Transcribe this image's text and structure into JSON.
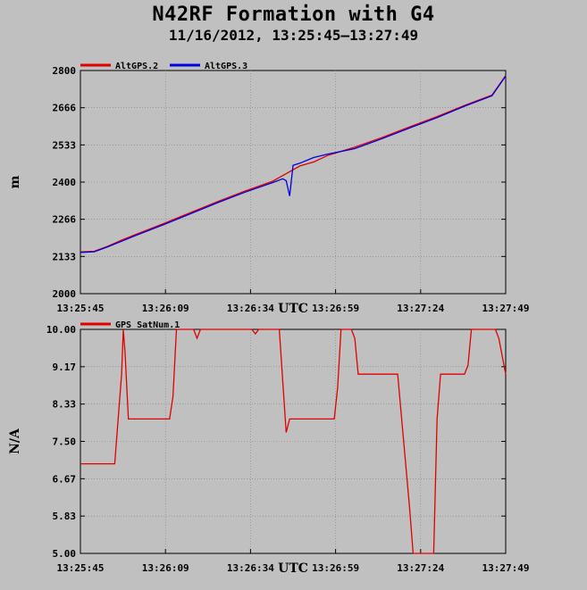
{
  "title": "N42RF Formation with G4",
  "subtitle": "11/16/2012, 13:25:45–13:27:49",
  "colors": {
    "background": "#c0c0c0",
    "plot_bg": "#c0c0c0",
    "red": "#e00000",
    "blue": "#0000e0",
    "grid": "#808080"
  },
  "chart_data": [
    {
      "type": "line",
      "ylabel": "m",
      "xlabel": "UTC",
      "ylim": [
        2000,
        2800
      ],
      "yticks": [
        "2000",
        "2133",
        "2266",
        "2400",
        "2533",
        "2666",
        "2800"
      ],
      "xticks": [
        "13:25:45",
        "13:26:09",
        "13:26:34",
        "13:26:59",
        "13:27:24",
        "13:27:49"
      ],
      "xlim_seconds": [
        0,
        124
      ],
      "grid": true,
      "legend_placement": "top-left",
      "series": [
        {
          "name": "AltGPS.2",
          "color": "#e00000",
          "points": [
            [
              0,
              2150
            ],
            [
              4,
              2152
            ],
            [
              8,
              2170
            ],
            [
              12,
              2192
            ],
            [
              16,
              2212
            ],
            [
              24,
              2250
            ],
            [
              32,
              2290
            ],
            [
              40,
              2330
            ],
            [
              48,
              2368
            ],
            [
              56,
              2403
            ],
            [
              60,
              2430
            ],
            [
              64,
              2458
            ],
            [
              68,
              2472
            ],
            [
              72,
              2495
            ],
            [
              80,
              2525
            ],
            [
              88,
              2560
            ],
            [
              96,
              2598
            ],
            [
              104,
              2635
            ],
            [
              112,
              2675
            ],
            [
              120,
              2712
            ],
            [
              124,
              2782
            ]
          ]
        },
        {
          "name": "AltGPS.3",
          "color": "#0000e0",
          "points": [
            [
              0,
              2148
            ],
            [
              4,
              2150
            ],
            [
              8,
              2168
            ],
            [
              12,
              2188
            ],
            [
              16,
              2208
            ],
            [
              24,
              2246
            ],
            [
              32,
              2286
            ],
            [
              40,
              2326
            ],
            [
              48,
              2364
            ],
            [
              56,
              2398
            ],
            [
              59,
              2412
            ],
            [
              60,
              2405
            ],
            [
              61,
              2350
            ],
            [
              62,
              2460
            ],
            [
              64,
              2468
            ],
            [
              68,
              2488
            ],
            [
              72,
              2500
            ],
            [
              80,
              2520
            ],
            [
              88,
              2556
            ],
            [
              96,
              2594
            ],
            [
              104,
              2631
            ],
            [
              112,
              2672
            ],
            [
              120,
              2709
            ],
            [
              124,
              2780
            ]
          ]
        }
      ]
    },
    {
      "type": "line",
      "ylabel": "N/A",
      "xlabel": "UTC",
      "ylim": [
        5.0,
        10.0
      ],
      "yticks": [
        "5.00",
        "5.83",
        "6.67",
        "7.50",
        "8.33",
        "9.17",
        "10.00"
      ],
      "xticks": [
        "13:25:45",
        "13:26:09",
        "13:26:34",
        "13:26:59",
        "13:27:24",
        "13:27:49"
      ],
      "xlim_seconds": [
        0,
        124
      ],
      "grid": true,
      "legend_placement": "top-left",
      "series": [
        {
          "name": "GPS_SatNum.1",
          "color": "#e00000",
          "points": [
            [
              0,
              7
            ],
            [
              10,
              7
            ],
            [
              12,
              9
            ],
            [
              12.5,
              10
            ],
            [
              13,
              9.5
            ],
            [
              14,
              8
            ],
            [
              26,
              8
            ],
            [
              27,
              8.5
            ],
            [
              28,
              10
            ],
            [
              33,
              10
            ],
            [
              34,
              9.8
            ],
            [
              35,
              10
            ],
            [
              50,
              10
            ],
            [
              51,
              9.9
            ],
            [
              52,
              10
            ],
            [
              58,
              10
            ],
            [
              60,
              7.7
            ],
            [
              61,
              8
            ],
            [
              74,
              8
            ],
            [
              75,
              8.7
            ],
            [
              76,
              10
            ],
            [
              79,
              10
            ],
            [
              80,
              9.8
            ],
            [
              81,
              9
            ],
            [
              92,
              9
            ],
            [
              92.5,
              9
            ],
            [
              96,
              6
            ],
            [
              97,
              5
            ],
            [
              103,
              5
            ],
            [
              104,
              8
            ],
            [
              105,
              9
            ],
            [
              112,
              9
            ],
            [
              113,
              9.2
            ],
            [
              114,
              10
            ],
            [
              121,
              10
            ],
            [
              122,
              9.8
            ],
            [
              124,
              9
            ]
          ]
        }
      ]
    }
  ]
}
